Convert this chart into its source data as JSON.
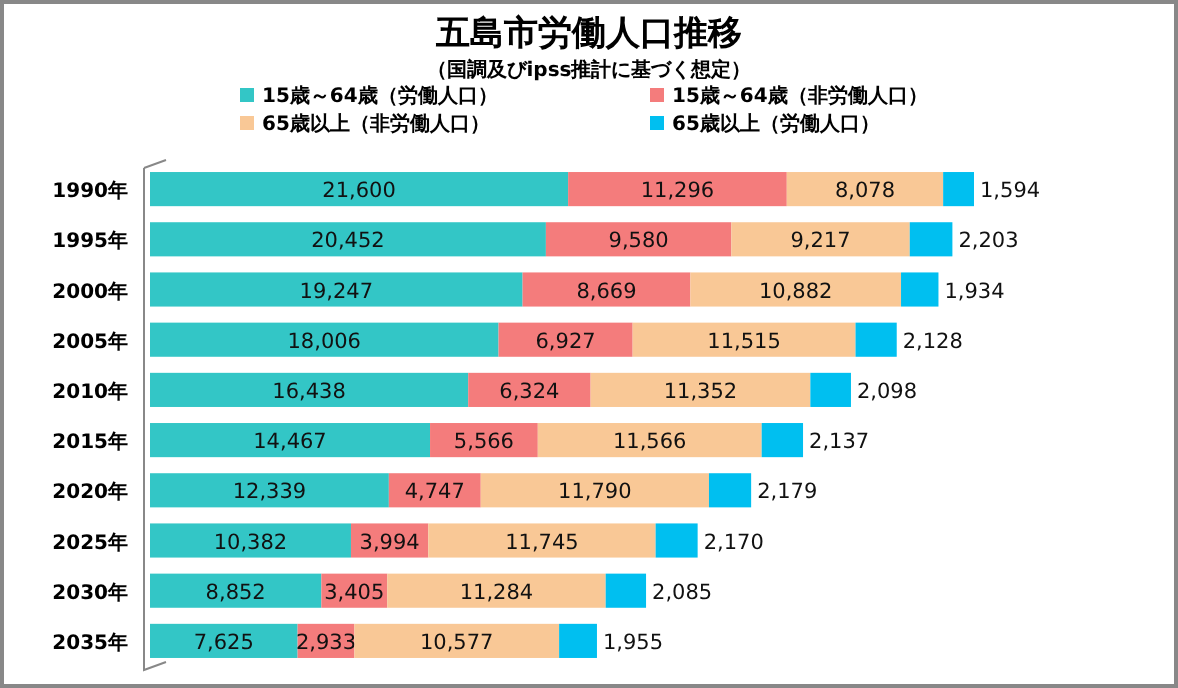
{
  "chart_data": {
    "type": "bar",
    "orientation": "horizontal",
    "stacked": true,
    "title": "五島市労働人口推移",
    "subtitle": "（国調及びipss推計に基づく想定）",
    "categories": [
      "1990年",
      "1995年",
      "2000年",
      "2005年",
      "2010年",
      "2015年",
      "2020年",
      "2025年",
      "2030年",
      "2035年"
    ],
    "series": [
      {
        "name": "15歳～64歳（労働人口）",
        "color": "#33c6c6",
        "values": [
          21600,
          20452,
          19247,
          18006,
          16438,
          14467,
          12339,
          10382,
          8852,
          7625
        ],
        "value_labels": [
          "21,600",
          "20,452",
          "19,247",
          "18,006",
          "16,438",
          "14,467",
          "12,339",
          "10,382",
          "8,852",
          "7,625"
        ]
      },
      {
        "name": "15歳～64歳（非労働人口）",
        "color": "#f47c7c",
        "values": [
          11296,
          9580,
          8669,
          6927,
          6324,
          5566,
          4747,
          3994,
          3405,
          2933
        ],
        "value_labels": [
          "11,296",
          "9,580",
          "8,669",
          "6,927",
          "6,324",
          "5,566",
          "4,747",
          "3,994",
          "3,405",
          "2,933"
        ]
      },
      {
        "name": "65歳以上（非労働人口）",
        "color": "#f9c896",
        "values": [
          8078,
          9217,
          10882,
          11515,
          11352,
          11566,
          11790,
          11745,
          11284,
          10577
        ],
        "value_labels": [
          "8,078",
          "9,217",
          "10,882",
          "11,515",
          "11,352",
          "11,566",
          "11,790",
          "11,745",
          "11,284",
          "10,577"
        ]
      },
      {
        "name": "65歳以上（労働人口）",
        "color": "#00bff0",
        "values": [
          1594,
          2203,
          1934,
          2128,
          2098,
          2137,
          2179,
          2170,
          2085,
          1955
        ],
        "value_labels": [
          "1,594",
          "2,203",
          "1,934",
          "2,128",
          "2,098",
          "2,137",
          "2,179",
          "2,170",
          "2,085",
          "1,955"
        ]
      }
    ],
    "legend": "top"
  }
}
